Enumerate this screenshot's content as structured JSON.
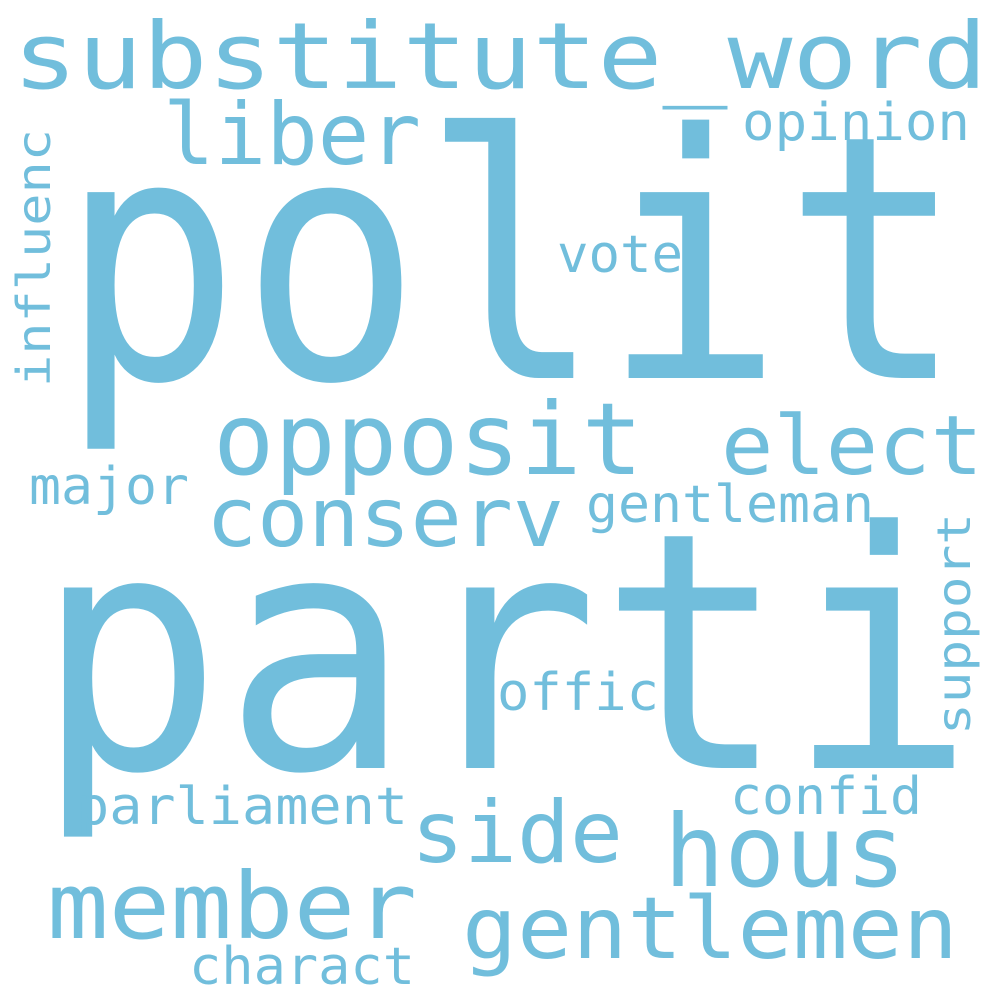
{
  "word_color": "#71BEDC",
  "background": "#FFFFFF",
  "words": [
    {
      "text": "polit"
    },
    {
      "text": "parti"
    },
    {
      "text": "substitute_word"
    },
    {
      "text": "liber"
    },
    {
      "text": "opinion"
    },
    {
      "text": "vote"
    },
    {
      "text": "influenc"
    },
    {
      "text": "opposit"
    },
    {
      "text": "elect"
    },
    {
      "text": "conserv"
    },
    {
      "text": "major"
    },
    {
      "text": "gentleman"
    },
    {
      "text": "support"
    },
    {
      "text": "offic"
    },
    {
      "text": "confid"
    },
    {
      "text": "parliament"
    },
    {
      "text": "side"
    },
    {
      "text": "hous"
    },
    {
      "text": "member"
    },
    {
      "text": "gentlemen"
    },
    {
      "text": "charact"
    }
  ]
}
